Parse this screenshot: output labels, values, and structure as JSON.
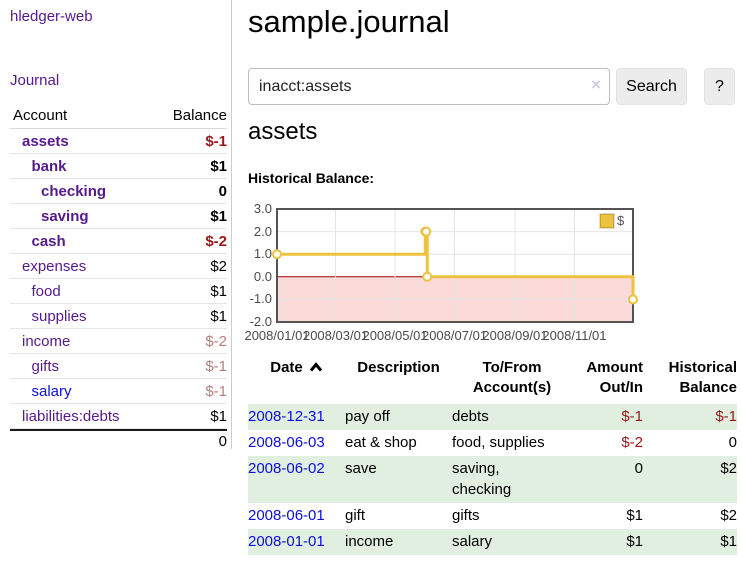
{
  "colors": {
    "accent_purple": "#551a8b",
    "link_blue": "#0d0de0",
    "negative_red": "#9e1616",
    "negative_faded": "#b97c7c",
    "row_green": "#e1efe1",
    "chart_series_yellow": "#edc240",
    "chart_negative_fill": "#fbdada",
    "chart_zero_line": "#a00000",
    "chart_grid": "#e4e4e4",
    "chart_border": "#545454"
  },
  "sidebar": {
    "app_title": "hledger-web",
    "journal_label": "Journal",
    "table": {
      "account_header": "Account",
      "balance_header": "Balance",
      "accounts": [
        {
          "name": "assets",
          "depth": 0,
          "bold": true,
          "balance": "$-1",
          "tone": "neg"
        },
        {
          "name": "bank",
          "depth": 1,
          "bold": true,
          "balance": "$1",
          "tone": "pos"
        },
        {
          "name": "checking",
          "depth": 2,
          "bold": true,
          "balance": "0",
          "tone": "pos"
        },
        {
          "name": "saving",
          "depth": 2,
          "bold": true,
          "balance": "$1",
          "tone": "pos"
        },
        {
          "name": "cash",
          "depth": 1,
          "bold": true,
          "balance": "$-2",
          "tone": "neg"
        },
        {
          "name": "expenses",
          "depth": 0,
          "bold": false,
          "balance": "$2",
          "tone": "pos"
        },
        {
          "name": "food",
          "depth": 1,
          "bold": false,
          "balance": "$1",
          "tone": "pos"
        },
        {
          "name": "supplies",
          "depth": 1,
          "bold": false,
          "balance": "$1",
          "tone": "pos"
        },
        {
          "name": "income",
          "depth": 0,
          "bold": false,
          "balance": "$-2",
          "tone": "negfaded"
        },
        {
          "name": "gifts",
          "depth": 1,
          "bold": false,
          "balance": "$-1",
          "tone": "negfaded"
        },
        {
          "name": "salary",
          "depth": 1,
          "bold": false,
          "balance": "$-1",
          "tone": "negfaded",
          "link": "blue"
        },
        {
          "name": "liabilities:debts",
          "depth": 0,
          "bold": false,
          "balance": "$1",
          "tone": "pos"
        }
      ],
      "total": "0"
    }
  },
  "main": {
    "title": "sample.journal",
    "search": {
      "value": "inacct:assets",
      "clear_icon": "×",
      "button_label": "Search",
      "help_label": "?"
    },
    "account_heading": "assets"
  },
  "chart_data": {
    "type": "line",
    "title": "Historical Balance:",
    "steps": true,
    "x_range": [
      "2008-01-01",
      "2008-12-31"
    ],
    "x_range_days": 365,
    "ylim": [
      -2,
      3
    ],
    "y_ticks": [
      "3.0",
      "2.0",
      "1.0",
      "0.0",
      "-1.0",
      "-2.0"
    ],
    "x_ticks": [
      {
        "label": "2008/01/01",
        "day": 0
      },
      {
        "label": "2008/03/01",
        "day": 60
      },
      {
        "label": "2008/05/01",
        "day": 121
      },
      {
        "label": "2008/07/01",
        "day": 182
      },
      {
        "label": "2008/09/01",
        "day": 244
      },
      {
        "label": "2008/11/01",
        "day": 305
      }
    ],
    "grid": true,
    "legend_position": "top-right",
    "negative_region_fill": true,
    "series": [
      {
        "name": "$",
        "color": "#edc240",
        "points": [
          {
            "date": "2008-01-01",
            "day": 0,
            "value": 1
          },
          {
            "date": "2008-06-01",
            "day": 152,
            "value": 2
          },
          {
            "date": "2008-06-02",
            "day": 153,
            "value": 2
          },
          {
            "date": "2008-06-03",
            "day": 154,
            "value": 0
          },
          {
            "date": "2008-12-31",
            "day": 365,
            "value": -1
          }
        ]
      }
    ]
  },
  "register": {
    "headers": [
      {
        "label": "Date",
        "align": "left",
        "sorted": true
      },
      {
        "label": "Description",
        "align": "left",
        "sorted": false
      },
      {
        "label": "To/From\nAccount(s)",
        "align": "left",
        "sorted": false
      },
      {
        "label": "Amount\nOut/In",
        "align": "right",
        "sorted": false
      },
      {
        "label": "Historical\nBalance",
        "align": "right",
        "sorted": false
      }
    ],
    "rows": [
      {
        "date": "2008-12-31",
        "description": "pay off",
        "accounts": "debts",
        "amount": "$-1",
        "amount_tone": "neg",
        "balance": "$-1",
        "balance_tone": "neg"
      },
      {
        "date": "2008-06-03",
        "description": "eat & shop",
        "accounts": "food, supplies",
        "amount": "$-2",
        "amount_tone": "neg",
        "balance": "0",
        "balance_tone": "pos"
      },
      {
        "date": "2008-06-02",
        "description": "save",
        "accounts": "saving,\nchecking",
        "amount": "0",
        "amount_tone": "pos",
        "balance": "$2",
        "balance_tone": "pos"
      },
      {
        "date": "2008-06-01",
        "description": "gift",
        "accounts": "gifts",
        "amount": "$1",
        "amount_tone": "pos",
        "balance": "$2",
        "balance_tone": "pos"
      },
      {
        "date": "2008-01-01",
        "description": "income",
        "accounts": "salary",
        "amount": "$1",
        "amount_tone": "pos",
        "balance": "$1",
        "balance_tone": "pos"
      }
    ]
  }
}
